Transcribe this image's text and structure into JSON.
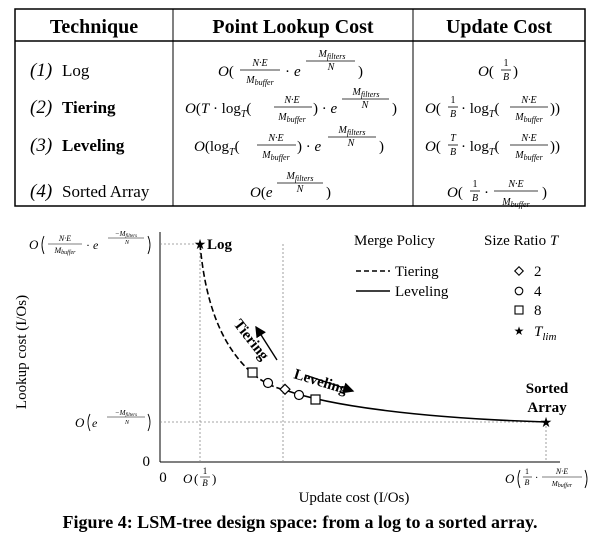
{
  "table": {
    "headers": [
      "Technique",
      "Point Lookup Cost",
      "Update Cost"
    ],
    "rows": [
      {
        "num": "(1)",
        "name": "Log",
        "name_bold": false
      },
      {
        "num": "(2)",
        "name": "Tiering",
        "name_bold": true
      },
      {
        "num": "(3)",
        "name": "Leveling",
        "name_bold": true
      },
      {
        "num": "(4)",
        "name": "Sorted Array",
        "name_bold": false
      }
    ]
  },
  "plot": {
    "x_axis_label": "Update cost (I/Os)",
    "y_axis_label": "Lookup cost (I/Os)",
    "x_zero": "0",
    "y_zero": "0",
    "point_log": "Log",
    "point_sorted_1": "Sorted",
    "point_sorted_2": "Array",
    "tiering_label": "Tiering",
    "leveling_label": "Leveling",
    "legend": {
      "merge_title": "Merge Policy",
      "merge_items": [
        "Tiering",
        "Leveling"
      ],
      "size_title": "Size Ratio",
      "size_symbol": "T",
      "size_items": [
        "2",
        "4",
        "8"
      ]
    }
  },
  "caption": "Figure 4: LSM-tree design space: from a log to a sorted array."
}
